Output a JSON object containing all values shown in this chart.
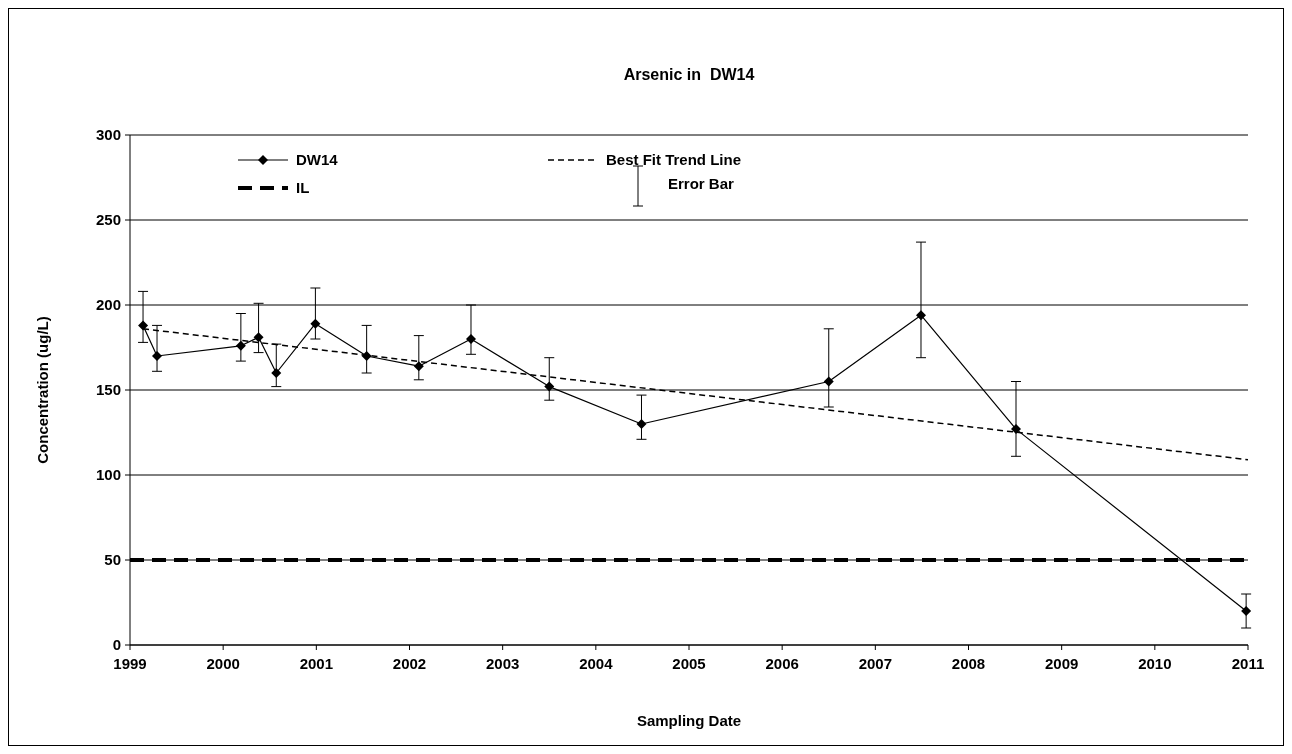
{
  "chart_data": {
    "type": "line",
    "title": "Arsenic in  DW14",
    "xlabel": "Sampling Date",
    "ylabel": "Concentration (ug/L)",
    "xlim": [
      1999,
      2011
    ],
    "xticks": [
      1999,
      2000,
      2001,
      2002,
      2003,
      2004,
      2005,
      2006,
      2007,
      2008,
      2009,
      2010,
      2011
    ],
    "ylim": [
      0,
      300
    ],
    "yticks": [
      0,
      50,
      100,
      150,
      200,
      250,
      300
    ],
    "grid": "y",
    "legend": "top",
    "series": [
      {
        "name": "DW14",
        "color": "#000000",
        "marker": "diamond",
        "line_style": "solid",
        "x": [
          1999.14,
          1999.29,
          2000.19,
          2000.38,
          2000.57,
          2000.99,
          2001.54,
          2002.1,
          2002.66,
          2003.5,
          2004.49,
          2006.5,
          2007.49,
          2008.51,
          2010.98
        ],
        "values": [
          188,
          170,
          176,
          181,
          160,
          189,
          170,
          164,
          180,
          152,
          130,
          155,
          194,
          127,
          20
        ],
        "errors": [
          [
            178,
            208
          ],
          [
            161,
            188
          ],
          [
            167,
            195
          ],
          [
            172,
            201
          ],
          [
            152,
            177
          ],
          [
            180,
            210
          ],
          [
            160,
            188
          ],
          [
            156,
            182
          ],
          [
            171,
            200
          ],
          [
            144,
            169
          ],
          [
            121,
            147
          ],
          [
            140,
            186
          ],
          [
            169,
            237
          ],
          [
            111,
            155
          ],
          [
            10,
            30
          ]
        ]
      },
      {
        "name": "Best Fit Trend Line",
        "color": "#000000",
        "marker": "none",
        "line_style": "dotted",
        "x": [
          1999.14,
          2011
        ],
        "values": [
          186,
          109
        ]
      }
    ],
    "ref_lines": [
      {
        "axis": "y",
        "value": 50,
        "label": "IL",
        "color": "#000000",
        "line_style": "dashed"
      }
    ],
    "annotations": [
      "Error Bar"
    ]
  }
}
